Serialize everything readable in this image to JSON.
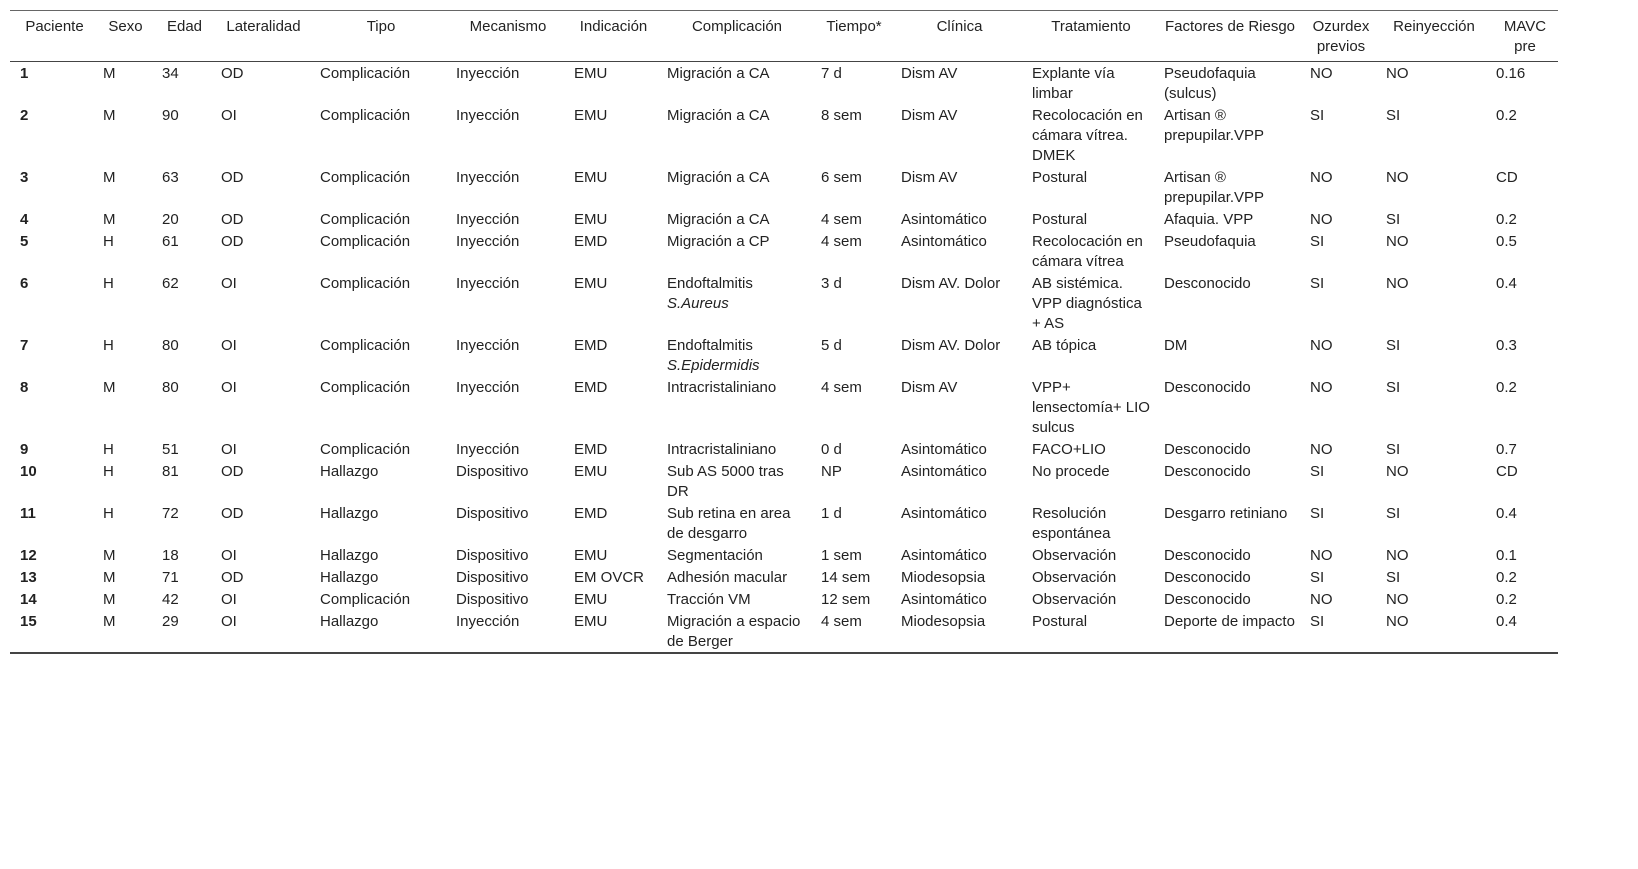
{
  "table": {
    "headers": [
      "Paciente",
      "Sexo",
      "Edad",
      "Lateralidad",
      "Tipo",
      "Mecanismo",
      "Indicación",
      "Complicación",
      "Tiempo*",
      "Clínica",
      "Tratamiento",
      "Factores de Riesgo",
      "Ozurdex previos",
      "Reinyección",
      "MAVC pre"
    ],
    "rows": [
      [
        "1",
        "M",
        "34",
        "OD",
        "Complicación",
        "Inyección",
        "EMU",
        "Migración a CA",
        "7 d",
        "Dism AV",
        "Explante vía limbar",
        "Pseudofaquia (sulcus)",
        "NO",
        "NO",
        "0.16"
      ],
      [
        "2",
        "M",
        "90",
        "OI",
        "Complicación",
        "Inyección",
        "EMU",
        "Migración a CA",
        "8 sem",
        "Dism AV",
        "Recolocación en cámara vítrea. DMEK",
        "Artisan ® prepupilar.VPP",
        "SI",
        "SI",
        "0.2"
      ],
      [
        "3",
        "M",
        "63",
        "OD",
        "Complicación",
        "Inyección",
        "EMU",
        "Migración a CA",
        "6 sem",
        "Dism AV",
        "Postural",
        "Artisan ® prepupilar.VPP",
        "NO",
        "NO",
        "CD"
      ],
      [
        "4",
        "M",
        "20",
        "OD",
        "Complicación",
        "Inyección",
        "EMU",
        "Migración a CA",
        "4 sem",
        "Asintomático",
        "Postural",
        "Afaquia. VPP",
        "NO",
        "SI",
        "0.2"
      ],
      [
        "5",
        "H",
        "61",
        "OD",
        "Complicación",
        "Inyección",
        "EMD",
        "Migración a CP",
        "4 sem",
        "Asintomático",
        "Recolocación en cámara vítrea",
        "Pseudofaquia",
        "SI",
        "NO",
        "0.5"
      ],
      [
        "6",
        "H",
        "62",
        "OI",
        "Complicación",
        "Inyección",
        "EMU",
        [
          "Endoftalmitis",
          "S.Aureus"
        ],
        "3 d",
        "Dism AV. Dolor",
        "AB sistémica. VPP diagnóstica + AS",
        "Desconocido",
        "SI",
        "NO",
        "0.4"
      ],
      [
        "7",
        "H",
        "80",
        "OI",
        "Complicación",
        "Inyección",
        "EMD",
        [
          "Endoftalmitis",
          "S.Epidermidis"
        ],
        "5 d",
        "Dism AV. Dolor",
        "AB tópica",
        "DM",
        "NO",
        "SI",
        "0.3"
      ],
      [
        "8",
        "M",
        "80",
        "OI",
        "Complicación",
        "Inyección",
        "EMD",
        "Intracristaliniano",
        "4 sem",
        "Dism AV",
        "VPP+ lensectomía+ LIO sulcus",
        "Desconocido",
        "NO",
        "SI",
        "0.2"
      ],
      [
        "9",
        "H",
        "51",
        "OI",
        "Complicación",
        "Inyección",
        "EMD",
        "Intracristaliniano",
        "0 d",
        "Asintomático",
        "FACO+LIO",
        "Desconocido",
        "NO",
        "SI",
        "0.7"
      ],
      [
        "10",
        "H",
        "81",
        "OD",
        "Hallazgo",
        "Dispositivo",
        "EMU",
        "Sub AS 5000 tras DR",
        "NP",
        "Asintomático",
        "No procede",
        "Desconocido",
        "SI",
        "NO",
        "CD"
      ],
      [
        "11",
        "H",
        "72",
        "OD",
        "Hallazgo",
        "Dispositivo",
        "EMD",
        "Sub retina en area de desgarro",
        "1 d",
        "Asintomático",
        "Resolución espontánea",
        "Desgarro retiniano",
        "SI",
        "SI",
        "0.4"
      ],
      [
        "12",
        "M",
        "18",
        "OI",
        "Hallazgo",
        "Dispositivo",
        "EMU",
        "Segmentación",
        "1 sem",
        "Asintomático",
        "Observación",
        "Desconocido",
        "NO",
        "NO",
        "0.1"
      ],
      [
        "13",
        "M",
        "71",
        "OD",
        "Hallazgo",
        "Dispositivo",
        "EM OVCR",
        "Adhesión macular",
        "14 sem",
        "Miodesopsia",
        "Observación",
        "Desconocido",
        "SI",
        "SI",
        "0.2"
      ],
      [
        "14",
        "M",
        "42",
        "OI",
        "Complicación",
        "Dispositivo",
        "EMU",
        "Tracción VM",
        "12 sem",
        "Asintomático",
        "Observación",
        "Desconocido",
        "NO",
        "NO",
        "0.2"
      ],
      [
        "15",
        "M",
        "29",
        "OI",
        "Hallazgo",
        "Inyección",
        "EMU",
        "Migración a espacio de Berger",
        "4 sem",
        "Miodesopsia",
        "Postural",
        "Deporte de impacto",
        "SI",
        "NO",
        "0.4"
      ]
    ]
  }
}
